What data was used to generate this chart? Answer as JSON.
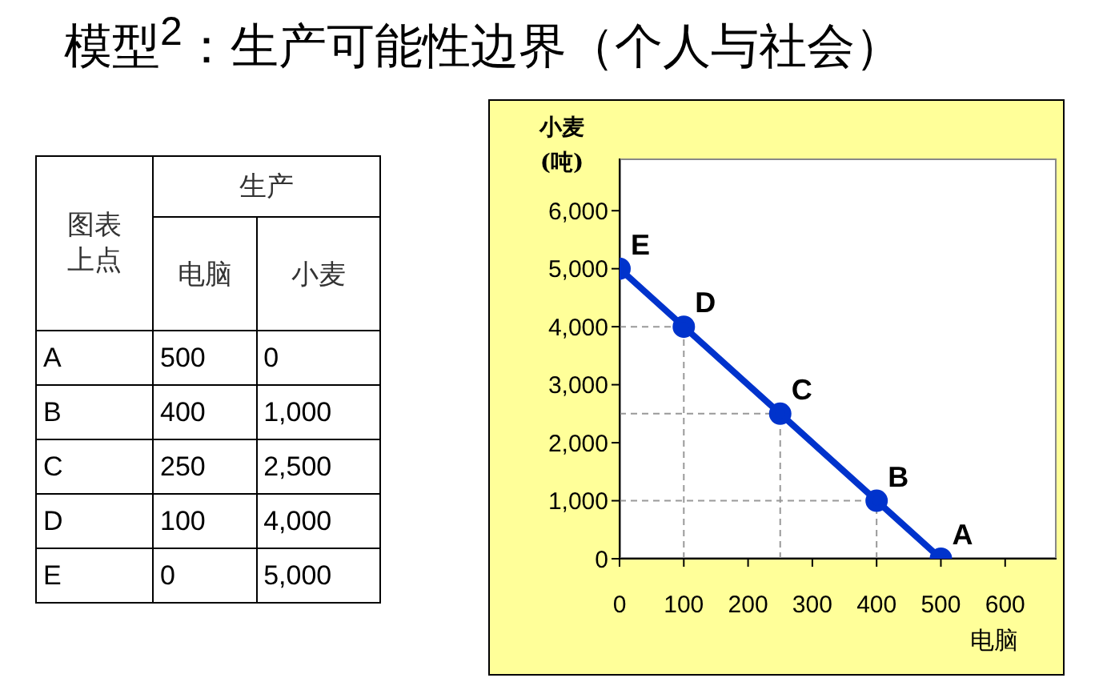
{
  "chart_data": {
    "type": "line",
    "title": "模型$^{2}$：生产可能性边界（个人与社会）",
    "xlabel": "电脑",
    "ylabel": "小麦\n(吨)",
    "x": [
      500,
      400,
      250,
      100,
      0
    ],
    "series": [
      {
        "color": "#0033cc",
        "values": [
          0,
          1000,
          2500,
          4000,
          5000
        ]
      }
    ],
    "xlim": [
      0,
      680
    ],
    "xticks": [
      0,
      100,
      200,
      300,
      400,
      500,
      600
    ],
    "ylim": [
      0,
      6900
    ],
    "yticks": [
      0,
      {
        "value": 1000,
        "label": "1,000"
      },
      {
        "value": 2000,
        "label": "2,000"
      },
      {
        "value": 3000,
        "label": "3,000"
      },
      {
        "value": 4000,
        "label": "4,000"
      },
      {
        "value": 5000,
        "label": "5,000"
      },
      {
        "value": 6000,
        "label": "6,000"
      }
    ],
    "marker": "circle",
    "line_style": "solid",
    "grid": false,
    "legend": false,
    "annotations": [
      "图表上点",
      "生产",
      "电脑",
      "小麦",
      "500",
      "0",
      "400",
      "1,000",
      "250",
      "2,500",
      "100",
      "4,000",
      "0",
      "5,000",
      {
        "text": "A",
        "x": 500,
        "y": 0
      },
      {
        "text": "B",
        "x": 400,
        "y": 1000
      },
      {
        "text": "C",
        "x": 250,
        "y": 2500
      },
      {
        "text": "D",
        "x": 100,
        "y": 4000
      },
      {
        "text": "E",
        "x": 0,
        "y": 5000
      }
    ]
  }
}
